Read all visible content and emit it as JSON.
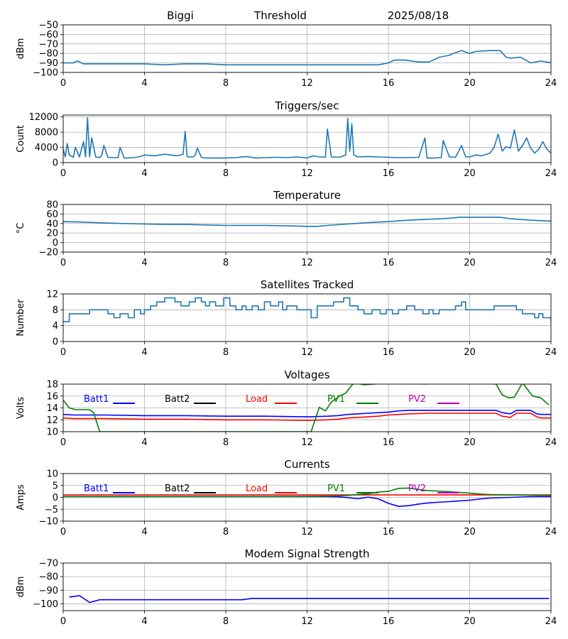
{
  "header": {
    "site": "Biggi",
    "mode": "Threshold",
    "date": "2025/08/18"
  },
  "colors": {
    "default": "#1f77b4",
    "batt1": "#0000ff",
    "batt2": "#000000",
    "load": "#ff0000",
    "pv1": "#008000",
    "pv2": "#bf00bf",
    "grid": "#b0b0b0"
  },
  "chart_data": [
    {
      "type": "line",
      "title": "",
      "ylabel": "dBm",
      "xlim": [
        0,
        24
      ],
      "ylim": [
        -100,
        -50
      ],
      "xticks": [
        0,
        4,
        8,
        12,
        16,
        20,
        24
      ],
      "yticks": [
        -100,
        -90,
        -80,
        -70,
        -60,
        -50
      ],
      "grid": true,
      "series": [
        {
          "color": "default",
          "x": [
            0,
            0.5,
            0.7,
            1,
            2,
            3,
            4,
            5,
            6,
            7,
            8,
            9,
            10,
            11,
            12,
            13,
            14,
            15,
            15.5,
            16,
            16.3,
            16.8,
            17.5,
            18,
            18.5,
            19,
            19.2,
            19.6,
            20,
            20.3,
            21,
            21.5,
            21.8,
            22,
            22.5,
            23,
            23.5,
            24
          ],
          "y": [
            -90,
            -90,
            -88,
            -91,
            -91,
            -91,
            -91,
            -92,
            -91,
            -91,
            -92,
            -92,
            -92,
            -92,
            -92,
            -92,
            -92,
            -92,
            -92,
            -90,
            -87,
            -87,
            -89,
            -89,
            -84,
            -82,
            -80,
            -77,
            -80,
            -78,
            -77,
            -77,
            -84,
            -85,
            -84,
            -90,
            -88,
            -90
          ]
        }
      ]
    },
    {
      "type": "line",
      "title": "Triggers/sec",
      "ylabel": "Count",
      "xlim": [
        0,
        24
      ],
      "ylim": [
        0,
        12500
      ],
      "xticks": [
        0,
        4,
        8,
        12,
        16,
        20,
        24
      ],
      "yticks": [
        0,
        4000,
        8000,
        12000
      ],
      "grid": true,
      "series": [
        {
          "color": "default",
          "x": [
            0,
            0.1,
            0.2,
            0.3,
            0.5,
            0.6,
            0.8,
            1.0,
            1.1,
            1.2,
            1.3,
            1.4,
            1.6,
            1.8,
            1.9,
            2.0,
            2.2,
            2.5,
            2.7,
            2.8,
            3.0,
            3.5,
            3.8,
            4.0,
            4.5,
            5.0,
            5.3,
            5.6,
            5.9,
            6.0,
            6.1,
            6.4,
            6.5,
            6.6,
            6.8,
            7.0,
            7.5,
            8.0,
            8.5,
            9.0,
            9.5,
            10.0,
            10.5,
            11.0,
            11.5,
            12.0,
            12.3,
            12.6,
            12.9,
            13.0,
            13.2,
            13.6,
            13.8,
            13.9,
            14.0,
            14.1,
            14.2,
            14.3,
            14.5,
            15.0,
            15.5,
            16.0,
            16.5,
            17.0,
            17.5,
            17.8,
            17.9,
            18.2,
            18.6,
            18.7,
            19.0,
            19.3,
            19.6,
            19.8,
            20.0,
            20.3,
            20.6,
            21.0,
            21.2,
            21.4,
            21.6,
            21.8,
            22.0,
            22.2,
            22.4,
            22.6,
            22.8,
            23.0,
            23.2,
            23.4,
            23.6,
            23.8,
            24.0
          ],
          "y": [
            3500,
            1500,
            5000,
            2000,
            1400,
            4000,
            1500,
            5500,
            1500,
            11800,
            1500,
            6500,
            1500,
            1300,
            2000,
            4500,
            1400,
            1300,
            1300,
            4000,
            1200,
            1300,
            1600,
            2000,
            1800,
            2200,
            2000,
            1800,
            2200,
            8200,
            1500,
            1500,
            2000,
            3800,
            1400,
            1200,
            1200,
            1200,
            1300,
            1600,
            1200,
            1300,
            1400,
            1300,
            1500,
            1200,
            1800,
            1500,
            1400,
            8800,
            1500,
            1400,
            1800,
            2000,
            11600,
            3000,
            10200,
            2000,
            1500,
            1600,
            1500,
            1400,
            1300,
            1300,
            1400,
            6500,
            1200,
            1200,
            1300,
            5800,
            1500,
            1400,
            4500,
            1500,
            1500,
            2000,
            1800,
            2500,
            4000,
            7500,
            3000,
            4200,
            3800,
            8600,
            3000,
            4500,
            6500,
            3800,
            2500,
            3500,
            5500,
            3500,
            2500
          ]
        }
      ]
    },
    {
      "type": "line",
      "title": "Temperature",
      "ylabel": "°C",
      "xlim": [
        0,
        24
      ],
      "ylim": [
        -20,
        80
      ],
      "xticks": [
        0,
        4,
        8,
        12,
        16,
        20,
        24
      ],
      "yticks": [
        -20,
        0,
        20,
        40,
        60,
        80
      ],
      "grid": true,
      "series": [
        {
          "color": "default",
          "x": [
            0,
            1,
            2,
            3,
            4,
            5,
            6,
            7,
            8,
            9,
            10,
            11,
            12,
            12.5,
            13,
            14,
            15,
            16,
            17,
            18,
            19,
            19.5,
            20,
            21,
            21.5,
            22,
            23,
            24
          ],
          "y": [
            44,
            43,
            41,
            40,
            39,
            38,
            38,
            37,
            36,
            36,
            36,
            35,
            34,
            34,
            36,
            39,
            42,
            44,
            47,
            49,
            51,
            53,
            53,
            53,
            53,
            50,
            47,
            45
          ]
        }
      ]
    },
    {
      "type": "line",
      "title": "Satellites Tracked",
      "ylabel": "Number",
      "xlim": [
        0,
        24
      ],
      "ylim": [
        0,
        12
      ],
      "xticks": [
        0,
        4,
        8,
        12,
        16,
        20,
        24
      ],
      "yticks": [
        0,
        4,
        8,
        12
      ],
      "grid": true,
      "series": [
        {
          "color": "default",
          "step": true,
          "x": [
            0,
            0.3,
            0.8,
            1.3,
            1.8,
            2.2,
            2.5,
            2.8,
            3.2,
            3.5,
            3.8,
            4.0,
            4.3,
            4.6,
            5.0,
            5.5,
            5.8,
            6.2,
            6.5,
            6.8,
            7.0,
            7.2,
            7.5,
            7.9,
            8.2,
            8.5,
            8.8,
            9.0,
            9.3,
            9.6,
            9.9,
            10.2,
            10.6,
            10.8,
            11.0,
            11.5,
            12.2,
            12.5,
            12.7,
            13.3,
            13.8,
            14.1,
            14.5,
            14.8,
            15.2,
            15.6,
            15.9,
            16.2,
            16.5,
            16.9,
            17.3,
            17.7,
            18.0,
            18.2,
            18.5,
            18.8,
            19.3,
            19.6,
            19.8,
            20.5,
            21.2,
            22.3,
            22.6,
            22.9,
            23.2,
            23.4,
            23.6,
            23.9,
            24.0
          ],
          "y": [
            5,
            7,
            7,
            8,
            8,
            7,
            6,
            7,
            6,
            8,
            7,
            8,
            9,
            10,
            11,
            10,
            9,
            10,
            11,
            10,
            9,
            10,
            9,
            11,
            9,
            8,
            9,
            8,
            9,
            8,
            10,
            9,
            10,
            8,
            9,
            8,
            6,
            9,
            9,
            10,
            11,
            9,
            8,
            7,
            8,
            7,
            8,
            7,
            8,
            9,
            8,
            7,
            8,
            7,
            8,
            8,
            9,
            10,
            8,
            8,
            9,
            8,
            7,
            7,
            6,
            7,
            6,
            6,
            5
          ]
        }
      ]
    },
    {
      "type": "line",
      "title": "Voltages",
      "ylabel": "Volts",
      "xlim": [
        0,
        24
      ],
      "ylim": [
        10,
        18
      ],
      "xticks": [
        0,
        4,
        8,
        12,
        16,
        20,
        24
      ],
      "yticks": [
        10,
        12,
        14,
        16,
        18
      ],
      "grid": true,
      "legend": "top",
      "series": [
        {
          "name": "Batt1",
          "color": "batt1",
          "x": [
            0,
            0.5,
            1,
            2,
            4,
            6,
            8,
            10,
            12,
            13,
            13.5,
            14,
            14.5,
            15,
            15.5,
            16,
            16.5,
            17,
            18,
            19,
            20,
            21,
            21.3,
            21.6,
            22,
            22.3,
            22.6,
            23,
            23.3,
            23.5,
            24
          ],
          "y": [
            12.9,
            12.8,
            12.8,
            12.8,
            12.7,
            12.7,
            12.6,
            12.6,
            12.5,
            12.6,
            12.7,
            12.9,
            13.0,
            13.1,
            13.2,
            13.3,
            13.5,
            13.6,
            13.6,
            13.6,
            13.6,
            13.6,
            13.6,
            13.2,
            13.0,
            13.6,
            13.6,
            13.6,
            13.0,
            12.9,
            12.9
          ]
        },
        {
          "name": "Batt2",
          "color": "batt2",
          "x": [],
          "y": []
        },
        {
          "name": "Load",
          "color": "load",
          "x": [
            0,
            0.5,
            1,
            2,
            4,
            6,
            8,
            10,
            12,
            13,
            13.5,
            14,
            14.5,
            15,
            15.5,
            16,
            16.5,
            17,
            18,
            19,
            20,
            21,
            21.3,
            21.6,
            22,
            22.3,
            22.6,
            23,
            23.3,
            23.5,
            24
          ],
          "y": [
            12.3,
            12.2,
            12.2,
            12.2,
            12.1,
            12.1,
            12.0,
            12.0,
            11.9,
            12.0,
            12.1,
            12.3,
            12.4,
            12.5,
            12.6,
            12.8,
            12.9,
            13.0,
            13.1,
            13.1,
            13.1,
            13.1,
            13.1,
            12.6,
            12.4,
            13.1,
            13.1,
            13.1,
            12.5,
            12.3,
            12.3
          ]
        },
        {
          "name": "PV1",
          "color": "pv1",
          "x": [
            0,
            0.3,
            0.6,
            1,
            1.3,
            1.5,
            1.8,
            12.2,
            12.6,
            12.9,
            13.2,
            13.6,
            13.9,
            14.3,
            14.8,
            15.3,
            15.8,
            16.3,
            16.8,
            17.3,
            17.8,
            18.3,
            18.8,
            19.3,
            19.8,
            20.3,
            20.8,
            21.3,
            21.6,
            21.9,
            22.2,
            22.6,
            23.1,
            23.5,
            23.9
          ],
          "y": [
            15.3,
            14.0,
            13.7,
            13.7,
            13.7,
            13.2,
            10.0,
            10.0,
            14.1,
            13.5,
            15.0,
            16.0,
            16.5,
            18.2,
            17.9,
            18.0,
            18.2,
            18.3,
            18.2,
            18.1,
            18.0,
            18.2,
            18.1,
            18.2,
            18.1,
            18.2,
            18.1,
            18.0,
            16.2,
            15.7,
            15.8,
            18.2,
            16.0,
            15.7,
            14.5
          ]
        },
        {
          "name": "PV2",
          "color": "pv2",
          "x": [],
          "y": []
        }
      ]
    },
    {
      "type": "line",
      "title": "Currents",
      "ylabel": "Amps",
      "xlim": [
        0,
        24
      ],
      "ylim": [
        -10,
        10
      ],
      "xticks": [
        0,
        4,
        8,
        12,
        16,
        20,
        24
      ],
      "yticks": [
        -10,
        -5,
        0,
        5,
        10
      ],
      "grid": true,
      "legend": "top",
      "series": [
        {
          "name": "Batt1",
          "color": "batt1",
          "x": [
            0,
            2,
            4,
            6,
            8,
            10,
            12,
            13,
            13.5,
            14,
            14.5,
            15,
            15.5,
            16,
            16.5,
            17,
            17.5,
            18,
            19,
            20,
            20.5,
            21,
            22,
            23,
            24
          ],
          "y": [
            0.3,
            0.3,
            0.3,
            0.3,
            0.3,
            0.3,
            0.3,
            0.3,
            0.2,
            -0.1,
            -0.6,
            0.1,
            -0.6,
            -2.5,
            -3.8,
            -3.5,
            -2.8,
            -2.3,
            -1.8,
            -1.2,
            -0.7,
            -0.3,
            0,
            0.3,
            0.3
          ]
        },
        {
          "name": "Batt2",
          "color": "batt2",
          "x": [],
          "y": []
        },
        {
          "name": "Load",
          "color": "load",
          "x": [
            0,
            4,
            8,
            12,
            16,
            20,
            24
          ],
          "y": [
            1.0,
            1.0,
            1.0,
            1.0,
            1.0,
            1.0,
            1.0
          ]
        },
        {
          "name": "PV1",
          "color": "pv1",
          "x": [
            0,
            12,
            13,
            13.5,
            14,
            14.5,
            15,
            15.5,
            16,
            16.5,
            17,
            17.5,
            18,
            19,
            20,
            20.5,
            21,
            22,
            23,
            24
          ],
          "y": [
            0.3,
            0.4,
            0.5,
            0.6,
            0.8,
            1.2,
            1.5,
            2.2,
            2.5,
            3.8,
            3.9,
            3.3,
            2.8,
            2.4,
            1.8,
            1.4,
            1.2,
            1.0,
            0.9,
            0.8
          ]
        },
        {
          "name": "PV2",
          "color": "pv2",
          "x": [],
          "y": []
        }
      ]
    },
    {
      "type": "line",
      "title": "Modem Signal Strength",
      "ylabel": "dBm",
      "xlim": [
        0,
        24
      ],
      "ylim": [
        -105,
        -70
      ],
      "xticks": [
        0,
        4,
        8,
        12,
        16,
        20,
        24
      ],
      "yticks": [
        -100,
        -90,
        -80,
        -70
      ],
      "grid": true,
      "series": [
        {
          "color": "batt1",
          "x": [
            0.3,
            0.8,
            1.3,
            1.8,
            2.5,
            4,
            6,
            8,
            8.8,
            9.3,
            10,
            12,
            14,
            16,
            18,
            20,
            22,
            23.9
          ],
          "y": [
            -95,
            -94,
            -99,
            -97,
            -97,
            -97,
            -97,
            -97,
            -97,
            -96,
            -96,
            -96,
            -96,
            -96,
            -96,
            -96,
            -96,
            -96
          ]
        }
      ]
    }
  ]
}
